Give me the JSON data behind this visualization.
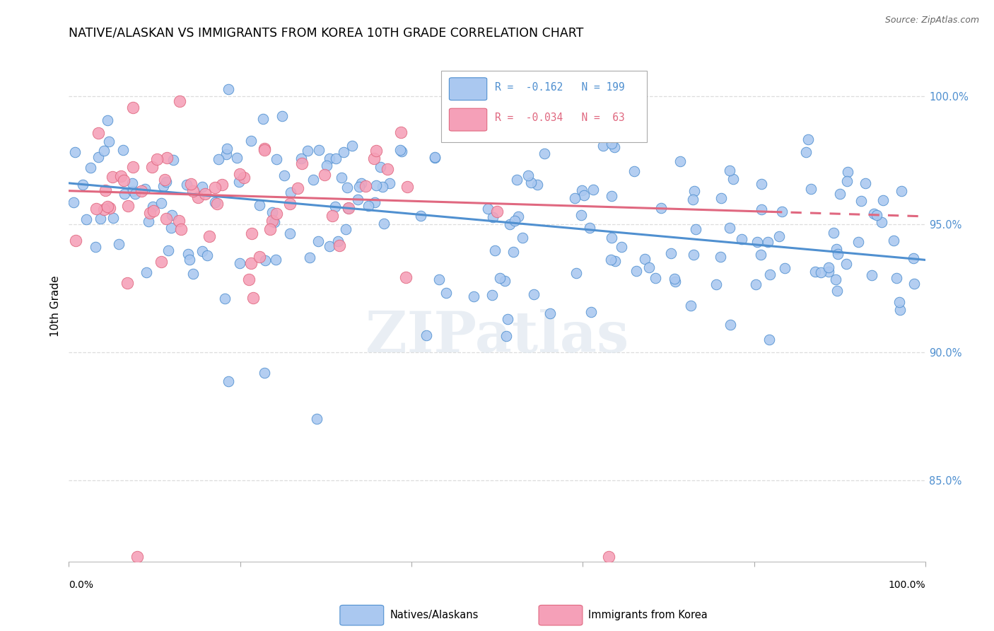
{
  "title": "NATIVE/ALASKAN VS IMMIGRANTS FROM KOREA 10TH GRADE CORRELATION CHART",
  "source": "Source: ZipAtlas.com",
  "ylabel": "10th Grade",
  "ytick_values": [
    0.85,
    0.9,
    0.95,
    1.0
  ],
  "xlim": [
    0.0,
    1.0
  ],
  "ylim": [
    0.818,
    1.018
  ],
  "blue_R": -0.162,
  "blue_N": 199,
  "pink_R": -0.034,
  "pink_N": 63,
  "blue_color": "#aac8f0",
  "pink_color": "#f5a0b8",
  "blue_line_color": "#5090d0",
  "pink_line_color": "#e06880",
  "watermark_text": "ZIPatlas",
  "blue_intercept": 0.966,
  "blue_slope": -0.03,
  "pink_intercept": 0.963,
  "pink_slope": -0.01,
  "seed": 42
}
